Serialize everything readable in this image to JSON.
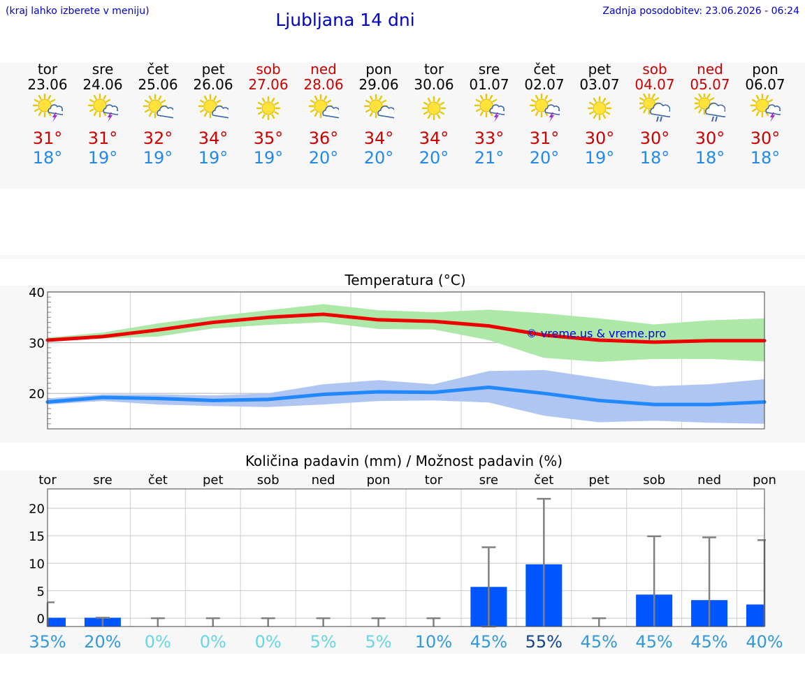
{
  "header": {
    "hint": "(kraj lahko izberete v meniju)",
    "title": "Ljubljana 14 dni",
    "updated": "Zadnja posodobitev: 23.06.2026 - 06:24"
  },
  "days": [
    {
      "dow": "tor",
      "date": "23.06",
      "weekend": false,
      "icon": "sun-cloud-thunder-icon",
      "tmax": "31°",
      "tmin": "18°"
    },
    {
      "dow": "sre",
      "date": "24.06",
      "weekend": false,
      "icon": "sun-cloud-thunder-icon",
      "tmax": "31°",
      "tmin": "19°"
    },
    {
      "dow": "čet",
      "date": "25.06",
      "weekend": false,
      "icon": "sun-small-cloud-icon",
      "tmax": "32°",
      "tmin": "19°"
    },
    {
      "dow": "pet",
      "date": "26.06",
      "weekend": false,
      "icon": "sun-small-cloud-icon",
      "tmax": "34°",
      "tmin": "19°"
    },
    {
      "dow": "sob",
      "date": "27.06",
      "weekend": true,
      "icon": "sun-icon",
      "tmax": "35°",
      "tmin": "19°"
    },
    {
      "dow": "ned",
      "date": "28.06",
      "weekend": true,
      "icon": "sun-small-cloud-icon",
      "tmax": "36°",
      "tmin": "20°"
    },
    {
      "dow": "pon",
      "date": "29.06",
      "weekend": false,
      "icon": "sun-small-cloud-icon",
      "tmax": "34°",
      "tmin": "20°"
    },
    {
      "dow": "tor",
      "date": "30.06",
      "weekend": false,
      "icon": "sun-icon",
      "tmax": "34°",
      "tmin": "20°"
    },
    {
      "dow": "sre",
      "date": "01.07",
      "weekend": false,
      "icon": "sun-cloud-thunder-icon",
      "tmax": "33°",
      "tmin": "21°"
    },
    {
      "dow": "čet",
      "date": "02.07",
      "weekend": false,
      "icon": "sun-cloud-thunder-icon",
      "tmax": "31°",
      "tmin": "20°"
    },
    {
      "dow": "pet",
      "date": "03.07",
      "weekend": false,
      "icon": "sun-icon",
      "tmax": "30°",
      "tmin": "19°"
    },
    {
      "dow": "sob",
      "date": "04.07",
      "weekend": true,
      "icon": "sun-cloud-rain-icon",
      "tmax": "30°",
      "tmin": "18°"
    },
    {
      "dow": "ned",
      "date": "05.07",
      "weekend": true,
      "icon": "sun-cloud-rain-icon",
      "tmax": "30°",
      "tmin": "18°"
    },
    {
      "dow": "pon",
      "date": "06.07",
      "weekend": false,
      "icon": "sun-cloud-thunder-icon",
      "tmax": "30°",
      "tmin": "18°"
    }
  ],
  "colors": {
    "max_line": "#ee0000",
    "max_band": "#aee8a8",
    "min_line": "#2288ff",
    "min_band": "#b0c6f2",
    "bar": "#0055ff",
    "whisker": "#808080"
  },
  "chart_data": [
    {
      "type": "line",
      "title": "Temperatura (°C)",
      "watermark": "© vreme.us & vreme.pro",
      "ylim": [
        13,
        40
      ],
      "yticks": [
        "40",
        "30",
        "20"
      ],
      "ytick_values": [
        40,
        30,
        20
      ],
      "grid": true,
      "series": [
        {
          "key": "max",
          "values": [
            30.5,
            31.2,
            32.5,
            34.0,
            35.0,
            35.6,
            34.5,
            34.2,
            33.3,
            31.5,
            30.5,
            30.1,
            30.4,
            30.4
          ],
          "band_upper": [
            31.0,
            32.0,
            33.8,
            35.2,
            36.4,
            37.6,
            36.4,
            36.0,
            36.5,
            35.8,
            34.8,
            33.6,
            34.4,
            34.8
          ],
          "band_lower": [
            30.2,
            30.8,
            31.2,
            32.8,
            33.5,
            34.0,
            32.7,
            32.6,
            30.5,
            27.0,
            26.2,
            26.8,
            26.8,
            26.3
          ]
        },
        {
          "key": "min",
          "values": [
            18.3,
            19.2,
            19.0,
            18.6,
            18.8,
            19.8,
            20.3,
            20.2,
            21.2,
            20.0,
            18.6,
            17.8,
            17.8,
            18.3
          ],
          "band_upper": [
            19.0,
            19.8,
            19.8,
            19.6,
            20.0,
            21.8,
            22.6,
            21.8,
            24.4,
            24.6,
            23.0,
            21.4,
            21.8,
            22.8
          ],
          "band_lower": [
            17.8,
            18.5,
            17.8,
            17.5,
            17.3,
            17.8,
            18.5,
            18.6,
            18.2,
            15.6,
            14.3,
            14.6,
            14.2,
            14.0
          ]
        }
      ]
    },
    {
      "type": "bar",
      "title": "Količina padavin (mm) / Možnost padavin (%)",
      "categories": [
        "tor",
        "sre",
        "čet",
        "pet",
        "sob",
        "ned",
        "pon",
        "tor",
        "sre",
        "čet",
        "pet",
        "sob",
        "ned",
        "pon"
      ],
      "ylim": [
        -1.5,
        23.5
      ],
      "yticks": [
        "20",
        "15",
        "10",
        "5",
        "0"
      ],
      "ytick_values": [
        20,
        15,
        10,
        5,
        0
      ],
      "grid": true,
      "values": [
        0.1,
        0.1,
        0,
        0,
        0,
        0,
        0,
        0,
        5.7,
        9.8,
        0,
        4.3,
        3.3,
        2.5
      ],
      "whisker_high": [
        2.9,
        0.1,
        0,
        0,
        0,
        0,
        0,
        0,
        12.9,
        21.7,
        0,
        14.9,
        14.7,
        14.2
      ],
      "whisker_low": [
        null,
        null,
        null,
        null,
        null,
        null,
        null,
        null,
        -1.5,
        null,
        null,
        null,
        null,
        null
      ],
      "probabilities": [
        "35%",
        "20%",
        "0%",
        "0%",
        "0%",
        "5%",
        "5%",
        "10%",
        "45%",
        "55%",
        "45%",
        "45%",
        "45%",
        "40%"
      ],
      "probability_colors": [
        "#3399dd",
        "#3399dd",
        "#66d6e6",
        "#66d6e6",
        "#66d6e6",
        "#66d6e6",
        "#66d6e6",
        "#3399dd",
        "#3399dd",
        "#114488",
        "#3399dd",
        "#3399dd",
        "#3399dd",
        "#3399dd"
      ]
    }
  ]
}
